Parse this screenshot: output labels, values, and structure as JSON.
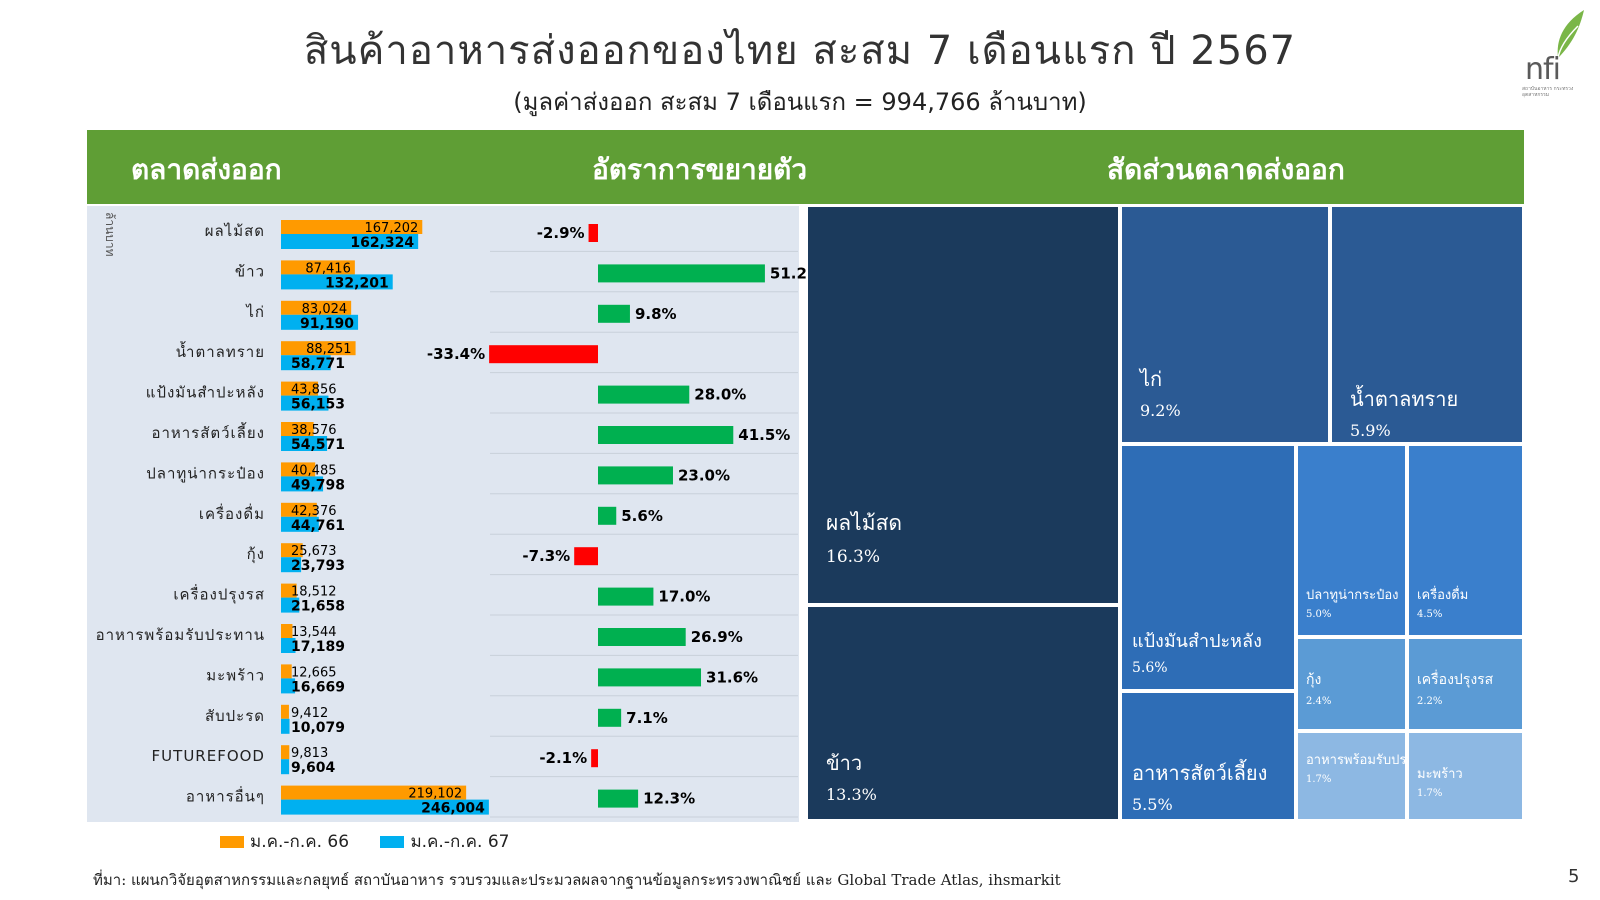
{
  "slide": {
    "title": "สินค้าอาหารส่งออกของไทย สะสม 7 เดือนแรก ปี 2567",
    "subtitle": "(มูลค่าส่งออก สะสม 7 เดือนแรก =   994,766 ล้านบาท)",
    "logo_text": "nfi",
    "logo_subtext": "สถาบันอาหาร กระทรวงอุตสาหกรรม",
    "header_markets": "ตลาดส่งออก",
    "header_growth": "อัตราการขยายตัว",
    "header_share": "สัดส่วนตลาดส่งออก",
    "unit_label": "ล้านบาท",
    "footer": "ที่มา: แผนกวิจัยอุตสาหกรรมและกลยุทธ์  สถาบันอาหาร รวบรวมและประมวลผลจากฐานข้อมูลกระทรวงพาณิชย์ และ Global Trade Atlas, ihsmarkit",
    "page_number": "5"
  },
  "colors": {
    "orange": "#ff9a00",
    "blue": "#00b0f0",
    "green": "#00b050",
    "red": "#ff0000",
    "header_green": "#5f9e35"
  },
  "chart_data": [
    {
      "type": "bar",
      "orientation": "horizontal",
      "categories": [
        "ผลไม้สด",
        "ข้าว",
        "ไก่",
        "น้ำตาลทราย",
        "แป้งมันสำปะหลัง",
        "อาหารสัตว์เลี้ยง",
        "ปลาทูน่ากระป๋อง",
        "เครื่องดื่ม",
        "กุ้ง",
        "เครื่องปรุงรส",
        "อาหารพร้อมรับประทาน",
        "มะพร้าว",
        "สับปะรด",
        "FUTUREFOOD",
        "อาหารอื่นๆ"
      ],
      "series": [
        {
          "name": "ม.ค.-ก.ค. 66",
          "values": [
            167202,
            87416,
            83024,
            88251,
            43856,
            38576,
            40485,
            42376,
            25673,
            18512,
            13544,
            12665,
            9412,
            9813,
            219102
          ],
          "labels": [
            "167,202",
            "87,416",
            "83,024",
            "88,251",
            "43,856",
            "38,576",
            "40,485",
            "42,376",
            "25,673",
            "18,512",
            "13,544",
            "12,665",
            "9,412",
            "9,813",
            "219,102"
          ]
        },
        {
          "name": "ม.ค.-ก.ค. 67",
          "values": [
            162324,
            132201,
            91190,
            58771,
            56153,
            54571,
            49798,
            44761,
            23793,
            21658,
            17189,
            16669,
            10079,
            9604,
            246004
          ],
          "labels": [
            "162,324",
            "132,201",
            "91,190",
            "58,771",
            "56,153",
            "54,571",
            "49,798",
            "44,761",
            "23,793",
            "21,658",
            "17,189",
            "16,669",
            "10,079",
            "9,604",
            "246,004"
          ]
        }
      ],
      "legend": "bottom-left",
      "grid": false
    },
    {
      "type": "bar",
      "orientation": "horizontal",
      "categories": [
        "ผลไม้สด",
        "ข้าว",
        "ไก่",
        "น้ำตาลทราย",
        "แป้งมันสำปะหลัง",
        "อาหารสัตว์เลี้ยง",
        "ปลาทูน่ากระป๋อง",
        "เครื่องดื่ม",
        "กุ้ง",
        "เครื่องปรุงรส",
        "อาหารพร้อมรับประทาน",
        "มะพร้าว",
        "สับปะรด",
        "FUTUREFOOD",
        "อาหารอื่นๆ"
      ],
      "values": [
        -2.9,
        51.2,
        9.8,
        -33.4,
        28.0,
        41.5,
        23.0,
        5.6,
        -7.3,
        17.0,
        26.9,
        31.6,
        7.1,
        -2.1,
        12.3
      ],
      "labels": [
        "-2.9%",
        "51.2%",
        "9.8%",
        "-33.4%",
        "28.0%",
        "41.5%",
        "23.0%",
        "5.6%",
        "-7.3%",
        "17.0%",
        "26.9%",
        "31.6%",
        "7.1%",
        "-2.1%",
        "12.3%"
      ],
      "grid": false
    },
    {
      "type": "treemap",
      "items": [
        {
          "name": "ผลไม้สด",
          "share": 16.3,
          "label": "16.3%",
          "color": "#1b3a5c"
        },
        {
          "name": "ข้าว",
          "share": 13.3,
          "label": "13.3%",
          "color": "#1b3a5c"
        },
        {
          "name": "ไก่",
          "share": 9.2,
          "label": "9.2%",
          "color": "#2b5a94"
        },
        {
          "name": "น้ำตาลทราย",
          "share": 5.9,
          "label": "5.9%",
          "color": "#2b5a94"
        },
        {
          "name": "แป้งมันสำปะหลัง",
          "share": 5.6,
          "label": "5.6%",
          "color": "#2e6db6"
        },
        {
          "name": "อาหารสัตว์เลี้ยง",
          "share": 5.5,
          "label": "5.5%",
          "color": "#2e6db6"
        },
        {
          "name": "ปลาทูน่ากระป๋อง",
          "share": 5.0,
          "label": "5.0%",
          "color": "#3a7fcc"
        },
        {
          "name": "เครื่องดื่ม",
          "share": 4.5,
          "label": "4.5%",
          "color": "#3a7fcc"
        },
        {
          "name": "กุ้ง",
          "share": 2.4,
          "label": "2.4%",
          "color": "#5b9bd5"
        },
        {
          "name": "เครื่องปรุงรส",
          "share": 2.2,
          "label": "2.2%",
          "color": "#5b9bd5"
        },
        {
          "name": "อาหารพร้อมรับประทาน",
          "share": 1.7,
          "label": "1.7%",
          "color": "#8db8e3"
        },
        {
          "name": "มะพร้าว",
          "share": 1.7,
          "label": "1.7%",
          "color": "#8db8e3"
        }
      ]
    }
  ]
}
